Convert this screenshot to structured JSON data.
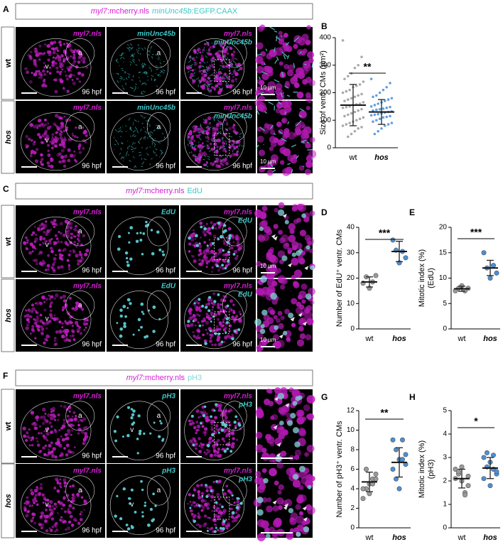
{
  "panels": [
    {
      "letter": "A",
      "legend": [
        {
          "text": "myl7",
          "color": "#d61ed6",
          "italic": true
        },
        {
          "text": ":mcherry.nls",
          "color": "#d61ed6"
        },
        {
          "text": "minUnc45b",
          "color": "#3fc8c8",
          "italic": true
        },
        {
          "text": ":EGFP.CAAX",
          "color": "#3fc8c8"
        }
      ],
      "rows": [
        {
          "label": "wt",
          "images": [
            {
              "labels": [
                {
                  "text": "myl7.nls",
                  "color": "#d61ed6"
                }
              ],
              "ventricle": "v",
              "atrium": "a",
              "stage": "96 hpf"
            },
            {
              "labels": [
                {
                  "text": "minUnc45b",
                  "color": "#3fc8c8"
                }
              ],
              "atrium": "a",
              "stage": "96 hpf"
            },
            {
              "labels": [
                {
                  "text": "myl7.nls",
                  "color": "#d61ed6"
                },
                {
                  "text": "minUnc45b",
                  "color": "#3fc8c8"
                }
              ],
              "stage": "96 hpf"
            },
            {
              "scale": "10 µm"
            }
          ]
        },
        {
          "label": "hos",
          "images": [
            {
              "labels": [
                {
                  "text": "myl7.nls",
                  "color": "#d61ed6"
                }
              ],
              "ventricle": "v",
              "atrium": "a",
              "stage": "96 hpf"
            },
            {
              "labels": [
                {
                  "text": "minUnc45b",
                  "color": "#3fc8c8"
                }
              ],
              "atrium": "a",
              "stage": "96 hpf"
            },
            {
              "labels": [
                {
                  "text": "myl7.nls",
                  "color": "#d61ed6"
                },
                {
                  "text": "minUnc45b",
                  "color": "#3fc8c8"
                }
              ],
              "stage": "96 hpf"
            },
            {
              "scale": "10 µm"
            }
          ]
        }
      ]
    },
    {
      "letter": "C",
      "legend": [
        {
          "text": "myl7",
          "color": "#d61ed6",
          "italic": true
        },
        {
          "text": ":mcherry.nls",
          "color": "#d61ed6"
        },
        {
          "text": "EdU",
          "color": "#3fc8c8"
        }
      ],
      "rows": [
        {
          "label": "wt",
          "images": [
            {
              "labels": [
                {
                  "text": "myl7.nls",
                  "color": "#d61ed6"
                }
              ],
              "ventricle": "v",
              "atrium": "a",
              "stage": "96 hpf"
            },
            {
              "labels": [
                {
                  "text": "EdU",
                  "color": "#3fc8c8"
                }
              ],
              "stage": "96 hpf"
            },
            {
              "labels": [
                {
                  "text": "myl7.nls",
                  "color": "#d61ed6"
                },
                {
                  "text": "EdU",
                  "color": "#3fc8c8"
                }
              ],
              "stage": "96 hpf"
            },
            {
              "scale": "10 µm"
            }
          ]
        },
        {
          "label": "hos",
          "images": [
            {
              "labels": [
                {
                  "text": "myl7.nls",
                  "color": "#d61ed6"
                }
              ],
              "ventricle": "v",
              "atrium": "a",
              "stage": "96 hpf"
            },
            {
              "labels": [
                {
                  "text": "EdU",
                  "color": "#3fc8c8"
                }
              ],
              "stage": "96 hpf"
            },
            {
              "labels": [
                {
                  "text": "myl7.nls",
                  "color": "#d61ed6"
                },
                {
                  "text": "EdU",
                  "color": "#3fc8c8"
                }
              ],
              "stage": "96 hpf"
            },
            {
              "scale": "10 µm"
            }
          ]
        }
      ]
    },
    {
      "letter": "F",
      "legend": [
        {
          "text": "myl7",
          "color": "#d61ed6",
          "italic": true
        },
        {
          "text": ":mcherry.nls",
          "color": "#d61ed6"
        },
        {
          "text": "pH3",
          "color": "#7fd8e0"
        }
      ],
      "rows": [
        {
          "label": "wt",
          "images": [
            {
              "labels": [
                {
                  "text": "myl7.nls",
                  "color": "#d61ed6"
                }
              ],
              "ventricle": "v",
              "atrium": "a",
              "stage": "96 hpf"
            },
            {
              "labels": [
                {
                  "text": "pH3",
                  "color": "#3fc8c8"
                }
              ],
              "ventricle": "v",
              "atrium": "a",
              "stage": "96 hpf"
            },
            {
              "labels": [
                {
                  "text": "myl7.nls",
                  "color": "#d61ed6"
                },
                {
                  "text": "pH3",
                  "color": "#3fc8c8"
                }
              ]
            },
            {}
          ]
        },
        {
          "label": "hos",
          "images": [
            {
              "labels": [
                {
                  "text": "myl7.nls",
                  "color": "#d61ed6"
                }
              ],
              "ventricle": "v",
              "atrium": "a",
              "stage": "96 hpf"
            },
            {
              "labels": [
                {
                  "text": "pH3",
                  "color": "#3fc8c8"
                }
              ],
              "ventricle": "v",
              "atrium": "a",
              "stage": "96 hpf"
            },
            {
              "labels": [
                {
                  "text": "myl7.nls",
                  "color": "#d61ed6"
                },
                {
                  "text": "pH3",
                  "color": "#3fc8c8"
                }
              ]
            },
            {}
          ]
        }
      ]
    }
  ],
  "chart_data": [
    {
      "type": "strip",
      "panel": "B",
      "ylabel": [
        "Size of ventr. CMs (µm²)"
      ],
      "categories": [
        "wt",
        "hos"
      ],
      "significance": "**",
      "ylim": [
        0,
        400
      ],
      "yticks": [
        0,
        100,
        200,
        300,
        400
      ],
      "series": [
        {
          "color": "#9a9a9a",
          "mean": 155,
          "sd": 75,
          "values": [
            390,
            330,
            300,
            290,
            270,
            260,
            250,
            240,
            230,
            225,
            220,
            210,
            205,
            200,
            195,
            190,
            185,
            180,
            175,
            170,
            165,
            160,
            158,
            155,
            150,
            148,
            145,
            140,
            135,
            130,
            125,
            120,
            115,
            110,
            105,
            100,
            95,
            90,
            85,
            80,
            75,
            70,
            60,
            50,
            40
          ]
        },
        {
          "color": "#4a8fd8",
          "mean": 130,
          "sd": 45,
          "values": [
            250,
            235,
            220,
            210,
            200,
            190,
            185,
            180,
            175,
            170,
            165,
            160,
            155,
            150,
            148,
            145,
            142,
            140,
            138,
            135,
            132,
            130,
            128,
            125,
            122,
            120,
            118,
            115,
            112,
            110,
            105,
            100,
            95,
            90,
            85,
            80,
            70,
            60,
            50
          ]
        }
      ]
    },
    {
      "type": "strip",
      "panel": "D",
      "ylabel": [
        "Number of EdU⁺ ventr. CMs"
      ],
      "categories": [
        "wt",
        "hos"
      ],
      "significance": "***",
      "ylim": [
        0,
        40
      ],
      "yticks": [
        0,
        10,
        20,
        30,
        40
      ],
      "series": [
        {
          "color": "#9a9a9a",
          "mean": 18.5,
          "sd": 2,
          "values": [
            18,
            20.5,
            16,
            18.5,
            21
          ]
        },
        {
          "color": "#4a8fd8",
          "mean": 30.5,
          "sd": 4,
          "values": [
            35,
            31,
            26,
            30.5,
            28
          ]
        }
      ]
    },
    {
      "type": "strip",
      "panel": "E",
      "ylabel": [
        "Mitotic index (%)",
        "(EdU)"
      ],
      "categories": [
        "wt",
        "hos"
      ],
      "significance": "***",
      "ylim": [
        0,
        20
      ],
      "yticks": [
        0,
        5,
        10,
        15,
        20
      ],
      "series": [
        {
          "color": "#9a9a9a",
          "mean": 7.9,
          "sd": 0.5,
          "values": [
            7.5,
            8,
            8.5,
            7.5,
            8
          ]
        },
        {
          "color": "#4a8fd8",
          "mean": 12,
          "sd": 1.5,
          "values": [
            15,
            12,
            10,
            12.5,
            11
          ]
        }
      ]
    },
    {
      "type": "strip",
      "panel": "G",
      "ylabel": [
        "Number of pH3⁺ ventr. CMs"
      ],
      "categories": [
        "wt",
        "hos"
      ],
      "significance": "**",
      "ylim": [
        0,
        12
      ],
      "yticks": [
        0,
        2,
        4,
        6,
        8,
        10,
        12
      ],
      "series": [
        {
          "color": "#9a9a9a",
          "mean": 4.7,
          "sd": 1,
          "values": [
            3,
            4,
            4.5,
            5,
            5.5,
            4,
            6,
            3.5,
            4.5,
            5
          ]
        },
        {
          "color": "#4a8fd8",
          "mean": 6.7,
          "sd": 1.5,
          "values": [
            9,
            8,
            7,
            7,
            6.5,
            6,
            5,
            4,
            9,
            7.5
          ]
        }
      ]
    },
    {
      "type": "strip",
      "panel": "H",
      "ylabel": [
        "Mitotic index (%)",
        "(pH3)"
      ],
      "categories": [
        "wt",
        "hos"
      ],
      "significance": "*",
      "ylim": [
        0,
        5
      ],
      "yticks": [
        0,
        1,
        2,
        3,
        4,
        5
      ],
      "series": [
        {
          "color": "#9a9a9a",
          "mean": 2.1,
          "sd": 0.4,
          "values": [
            2.5,
            2.3,
            2,
            1.5,
            1.8,
            2.1,
            2.4,
            2.6,
            1.4,
            2.2
          ]
        },
        {
          "color": "#4a8fd8",
          "mean": 2.55,
          "sd": 0.45,
          "values": [
            3,
            3.2,
            2.8,
            2.5,
            2.3,
            2.1,
            2.6,
            1.8,
            3.1,
            2.4
          ]
        }
      ]
    }
  ]
}
